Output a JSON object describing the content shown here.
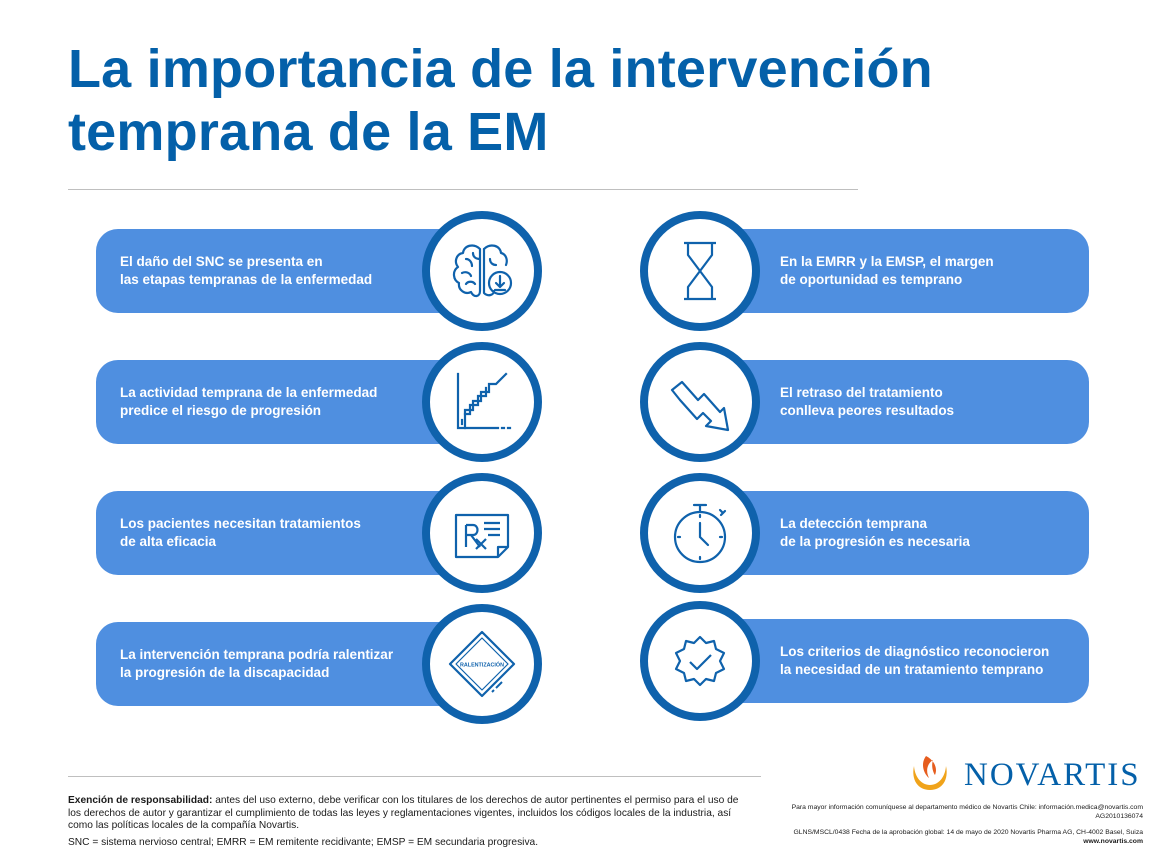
{
  "title": {
    "line1": "La importancia de la intervención",
    "line2": "temprana de la EM"
  },
  "left_cards": [
    {
      "line1": "El daño del SNC se presenta en",
      "line2": "las etapas tempranas de la enfermedad",
      "icon": "brain-icon"
    },
    {
      "line1": "La actividad temprana de la enfermedad",
      "line2": "predice el riesgo de progresión",
      "icon": "rising-stairs-chart-icon"
    },
    {
      "line1": "Los pacientes necesitan tratamientos",
      "line2": "de alta eficacia",
      "icon": "prescription-icon"
    },
    {
      "line1": "La intervención temprana podría ralentizar",
      "line2": "la progresión de la discapacidad",
      "icon": "slowdown-sign-icon",
      "sign_text": "RALENTIZACIÓN"
    }
  ],
  "right_cards": [
    {
      "line1": "En la EMRR y la EMSP, el margen",
      "line2": "de oportunidad es temprano",
      "icon": "hourglass-icon"
    },
    {
      "line1": "El retraso del tratamiento",
      "line2": "conlleva peores resultados",
      "icon": "downward-arrow-icon"
    },
    {
      "line1": "La detección temprana",
      "line2": "de la progresión es necesaria",
      "icon": "stopwatch-icon"
    },
    {
      "line1": "Los criterios de diagnóstico reconocieron",
      "line2": "la necesidad de un tratamiento temprano",
      "icon": "check-badge-icon"
    }
  ],
  "disclaimer": {
    "label": "Exención de responsabilidad:",
    "text": " antes del uso externo, debe verificar con los titulares de los derechos de autor pertinentes el permiso para el uso de los derechos de autor y garantizar el cumplimiento de todas las leyes y reglamentaciones vigentes, incluidos los códigos locales de la industria, así como las políticas locales de la compañía Novartis.",
    "abbreviations": "SNC = sistema nervioso central; EMRR = EM remitente recidivante; EMSP = EM secundaria progresiva."
  },
  "footer": {
    "brand": "NOVARTIS",
    "contact": "Para mayor información comuníquese al departamento médico de Novartis Chile: información.medica@novartis.com",
    "code": "AG2010136074",
    "approval": "GLNS/MSCL/0438 Fecha de la aprobación global: 14 de mayo de 2020 Novartis Pharma AG, CH-4002 Basel, Suiza",
    "website": "www.novartis.com"
  },
  "colors": {
    "title_blue": "#0460a9",
    "card_blue": "#4f8fe0",
    "ring_blue": "#0f62ac",
    "logo_orange": "#e65d1e"
  }
}
